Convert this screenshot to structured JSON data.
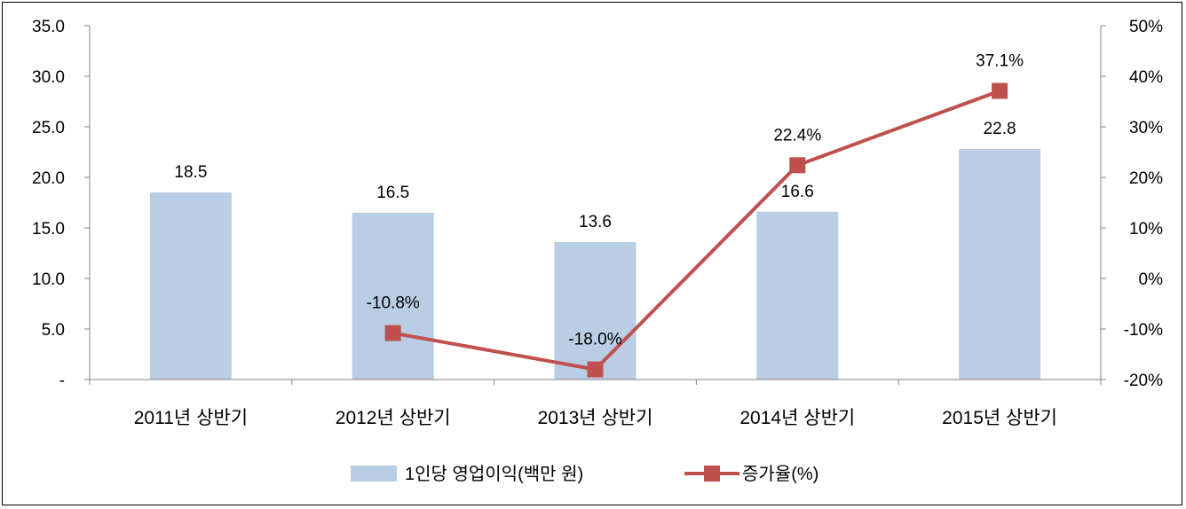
{
  "chart_data": {
    "type": "bar",
    "categories": [
      "2011년 상반기",
      "2012년 상반기",
      "2013년 상반기",
      "2014년 상반기",
      "2015년 상반기"
    ],
    "series": [
      {
        "name": "1인당 영업이익(백만 원)",
        "type": "bar",
        "axis": "left",
        "values": [
          18.5,
          16.5,
          13.6,
          16.6,
          22.8
        ],
        "labels": [
          "18.5",
          "16.5",
          "13.6",
          "16.6",
          "22.8"
        ]
      },
      {
        "name": "증가율(%)",
        "type": "line",
        "axis": "right",
        "values": [
          null,
          -10.8,
          -18.0,
          22.4,
          37.1
        ],
        "labels": [
          "",
          "-10.8%",
          "-18.0%",
          "22.4%",
          "37.1%"
        ]
      }
    ],
    "y_left": {
      "ylim": [
        0,
        35
      ],
      "ticks": [
        0,
        5,
        10,
        15,
        20,
        25,
        30,
        35
      ],
      "tick_labels": [
        "-",
        "5.0",
        "10.0",
        "15.0",
        "20.0",
        "25.0",
        "30.0",
        "35.0"
      ]
    },
    "y_right": {
      "ylim": [
        -20,
        50
      ],
      "ticks": [
        -20,
        -10,
        0,
        10,
        20,
        30,
        40,
        50
      ],
      "tick_labels": [
        "-20%",
        "-10%",
        "0%",
        "10%",
        "20%",
        "30%",
        "40%",
        "50%"
      ]
    },
    "grid": false,
    "legend_position": "bottom",
    "colors": {
      "bar": "#b9cde5",
      "line": "#c0504d",
      "axis": "#868686"
    }
  }
}
